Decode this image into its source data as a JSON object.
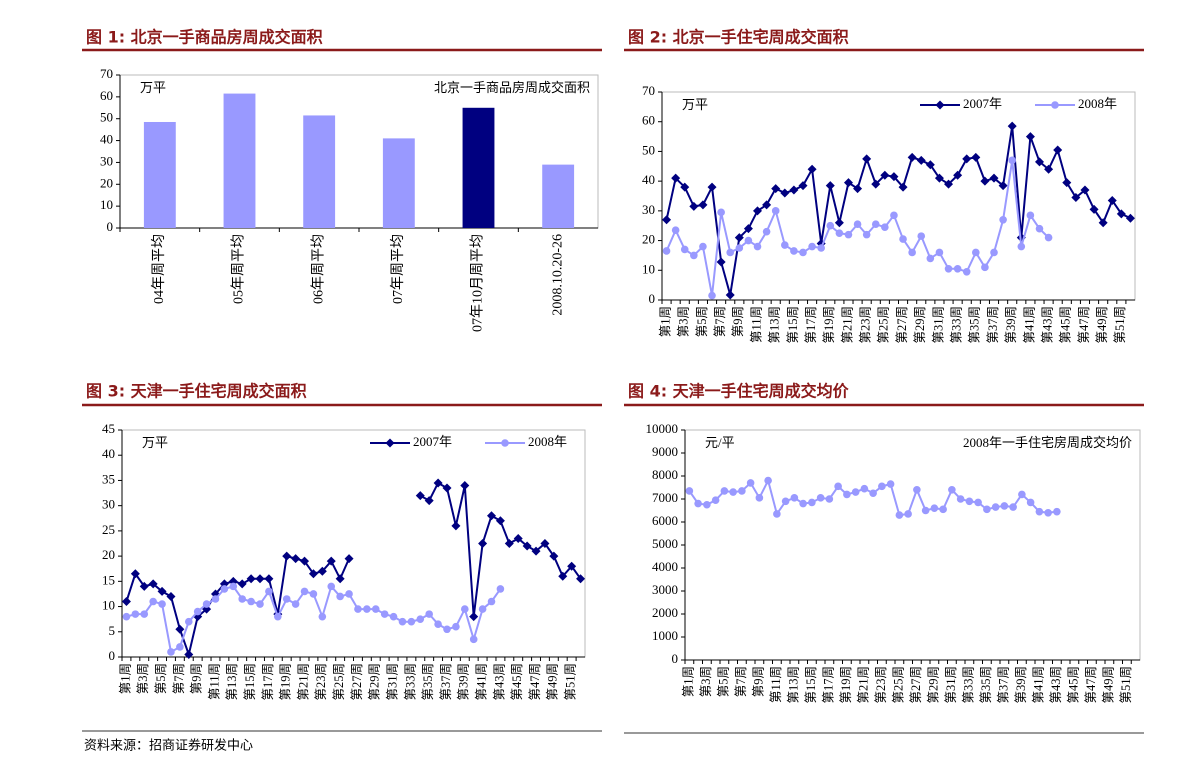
{
  "chart_data": [
    {
      "type": "bar",
      "title": "图 1: 北京一手商品房周成交面积",
      "unit": "万平",
      "categories": [
        "04年周平均",
        "05年周平均",
        "06年周平均",
        "07年周平均",
        "07年10月周平均",
        "2008.10.20-26"
      ],
      "series": [
        {
          "name": "北京一手商品房周成交面积",
          "values": [
            48.5,
            61.5,
            51.5,
            41,
            55,
            29
          ],
          "colors": [
            "#9999ff",
            "#9999ff",
            "#9999ff",
            "#9999ff",
            "#000080",
            "#9999ff"
          ]
        }
      ],
      "ylim": [
        0,
        70
      ],
      "yticks": [
        0,
        10,
        20,
        30,
        40,
        50,
        60,
        70
      ],
      "grid": false,
      "legend": "upper right"
    },
    {
      "type": "line",
      "title": "图 2: 北京一手住宅周成交面积",
      "unit": "万平",
      "categories": [
        "第1周",
        null,
        "第3周",
        null,
        "第5周",
        null,
        "第7周",
        null,
        "第9周",
        null,
        "第11周",
        null,
        "第13周",
        null,
        "第15周",
        null,
        "第17周",
        null,
        "第19周",
        null,
        "第21周",
        null,
        "第23周",
        null,
        "第25周",
        null,
        "第27周",
        null,
        "第29周",
        null,
        "第31周",
        null,
        "第33周",
        null,
        "第35周",
        null,
        "第37周",
        null,
        "第39周",
        null,
        "第41周",
        null,
        "第43周",
        null,
        "第45周",
        null,
        "第47周",
        null,
        "第49周",
        null,
        "第51周",
        null
      ],
      "series": [
        {
          "name": "2007年",
          "color": "#000080",
          "marker": "diamond",
          "values": [
            27,
            41,
            38,
            31.5,
            32,
            38,
            12.8,
            1.7,
            21,
            24,
            30,
            32,
            37.5,
            36,
            37,
            38.5,
            44,
            19,
            38.5,
            26,
            39.5,
            37.5,
            47.5,
            39,
            42,
            41.5,
            38,
            48,
            47,
            45.5,
            41,
            39,
            42,
            47.5,
            48,
            40,
            41,
            38.5,
            58.5,
            21,
            55,
            46.5,
            44,
            50.5,
            39.5,
            34.5,
            37,
            30.5,
            26,
            33.5,
            29,
            27.5
          ]
        },
        {
          "name": "2008年",
          "color": "#9999ff",
          "marker": "circle",
          "values": [
            16.5,
            23.5,
            17,
            15,
            18,
            1.5,
            29.5,
            16,
            17.5,
            20,
            18,
            23,
            30,
            18.5,
            16.5,
            16,
            18,
            17.5,
            25,
            22.5,
            22,
            25.5,
            22,
            25.5,
            24.5,
            28.5,
            20.5,
            16,
            21.5,
            14,
            16,
            10.5,
            10.5,
            9.5,
            16,
            11,
            16,
            27,
            47,
            18,
            28.5,
            24,
            21,
            null,
            null,
            null,
            null,
            null,
            null,
            null,
            null,
            null
          ]
        }
      ],
      "ylim": [
        0,
        70
      ],
      "yticks": [
        0,
        10,
        20,
        30,
        40,
        50,
        60,
        70
      ],
      "grid": false,
      "legend": "upper right"
    },
    {
      "type": "line",
      "title": "图 3: 天津一手住宅周成交面积",
      "unit": "万平",
      "categories": [
        "第1周",
        null,
        "第3周",
        null,
        "第5周",
        null,
        "第7周",
        null,
        "第9周",
        null,
        "第11周",
        null,
        "第13周",
        null,
        "第15周",
        null,
        "第17周",
        null,
        "第19周",
        null,
        "第21周",
        null,
        "第23周",
        null,
        "第25周",
        null,
        "第27周",
        null,
        "第29周",
        null,
        "第31周",
        null,
        "第33周",
        null,
        "第35周",
        null,
        "第37周",
        null,
        "第39周",
        null,
        "第41周",
        null,
        "第43周",
        null,
        "第45周",
        null,
        "第47周",
        null,
        "第49周",
        null,
        "第51周",
        null
      ],
      "series": [
        {
          "name": "2007年",
          "color": "#000080",
          "marker": "diamond",
          "values": [
            11,
            16.5,
            14,
            14.5,
            13,
            12,
            5.5,
            0.5,
            8,
            9.5,
            12.5,
            14.5,
            15,
            14.5,
            15.5,
            15.5,
            15.5,
            8.5,
            20,
            19.5,
            19,
            16.5,
            17,
            19,
            15.5,
            19.5,
            null,
            null,
            null,
            null,
            null,
            null,
            null,
            32,
            31,
            34.5,
            33.5,
            26,
            34,
            8,
            22.5,
            28,
            27,
            22.5,
            23.5,
            22,
            21,
            22.5,
            20,
            16,
            18,
            15.5
          ]
        },
        {
          "name": "2008年",
          "color": "#9999ff",
          "marker": "circle",
          "values": [
            8,
            8.5,
            8.5,
            11,
            10.5,
            1,
            2,
            7,
            9,
            10.5,
            11.5,
            13.5,
            14,
            11.5,
            11,
            10.5,
            13,
            8,
            11.5,
            10.5,
            13,
            12.5,
            8,
            14,
            12,
            12.5,
            9.5,
            9.5,
            9.5,
            8.5,
            8,
            7,
            7,
            7.5,
            8.5,
            6.5,
            5.5,
            6,
            9.5,
            3.5,
            9.5,
            11,
            13.5,
            null,
            null,
            null,
            null,
            null,
            null,
            null,
            null,
            null
          ]
        }
      ],
      "ylim": [
        0,
        45
      ],
      "yticks": [
        0,
        5,
        10,
        15,
        20,
        25,
        30,
        35,
        40,
        45
      ],
      "grid": false,
      "legend": "upper right"
    },
    {
      "type": "line",
      "title": "图 4: 天津一手住宅周成交均价",
      "unit": "元/平",
      "categories": [
        "第1周",
        null,
        "第3周",
        null,
        "第5周",
        null,
        "第7周",
        null,
        "第9周",
        null,
        "第11周",
        null,
        "第13周",
        null,
        "第15周",
        null,
        "第17周",
        null,
        "第19周",
        null,
        "第21周",
        null,
        "第23周",
        null,
        "第25周",
        null,
        "第27周",
        null,
        "第29周",
        null,
        "第31周",
        null,
        "第33周",
        null,
        "第35周",
        null,
        "第37周",
        null,
        "第39周",
        null,
        "第41周",
        null,
        "第43周",
        null,
        "第45周",
        null,
        "第47周",
        null,
        "第49周",
        null,
        "第51周",
        null
      ],
      "series": [
        {
          "name": "2008年一手住宅房周成交均价",
          "color": "#9999ff",
          "marker": "circle",
          "values": [
            7350,
            6800,
            6750,
            6950,
            7350,
            7300,
            7350,
            7700,
            7050,
            7800,
            6350,
            6900,
            7050,
            6800,
            6850,
            7050,
            7000,
            7550,
            7200,
            7300,
            7450,
            7250,
            7550,
            7650,
            6300,
            6350,
            7400,
            6500,
            6600,
            6550,
            7400,
            7000,
            6900,
            6850,
            6550,
            6650,
            6700,
            6650,
            7200,
            6850,
            6450,
            6400,
            6450,
            null,
            null,
            null,
            null,
            null,
            null,
            null,
            null,
            null
          ]
        }
      ],
      "ylim": [
        0,
        10000
      ],
      "yticks": [
        0,
        1000,
        2000,
        3000,
        4000,
        5000,
        6000,
        7000,
        8000,
        9000,
        10000
      ],
      "grid": false,
      "legend": "upper right"
    }
  ],
  "source": "资料来源：招商证券研发中心"
}
